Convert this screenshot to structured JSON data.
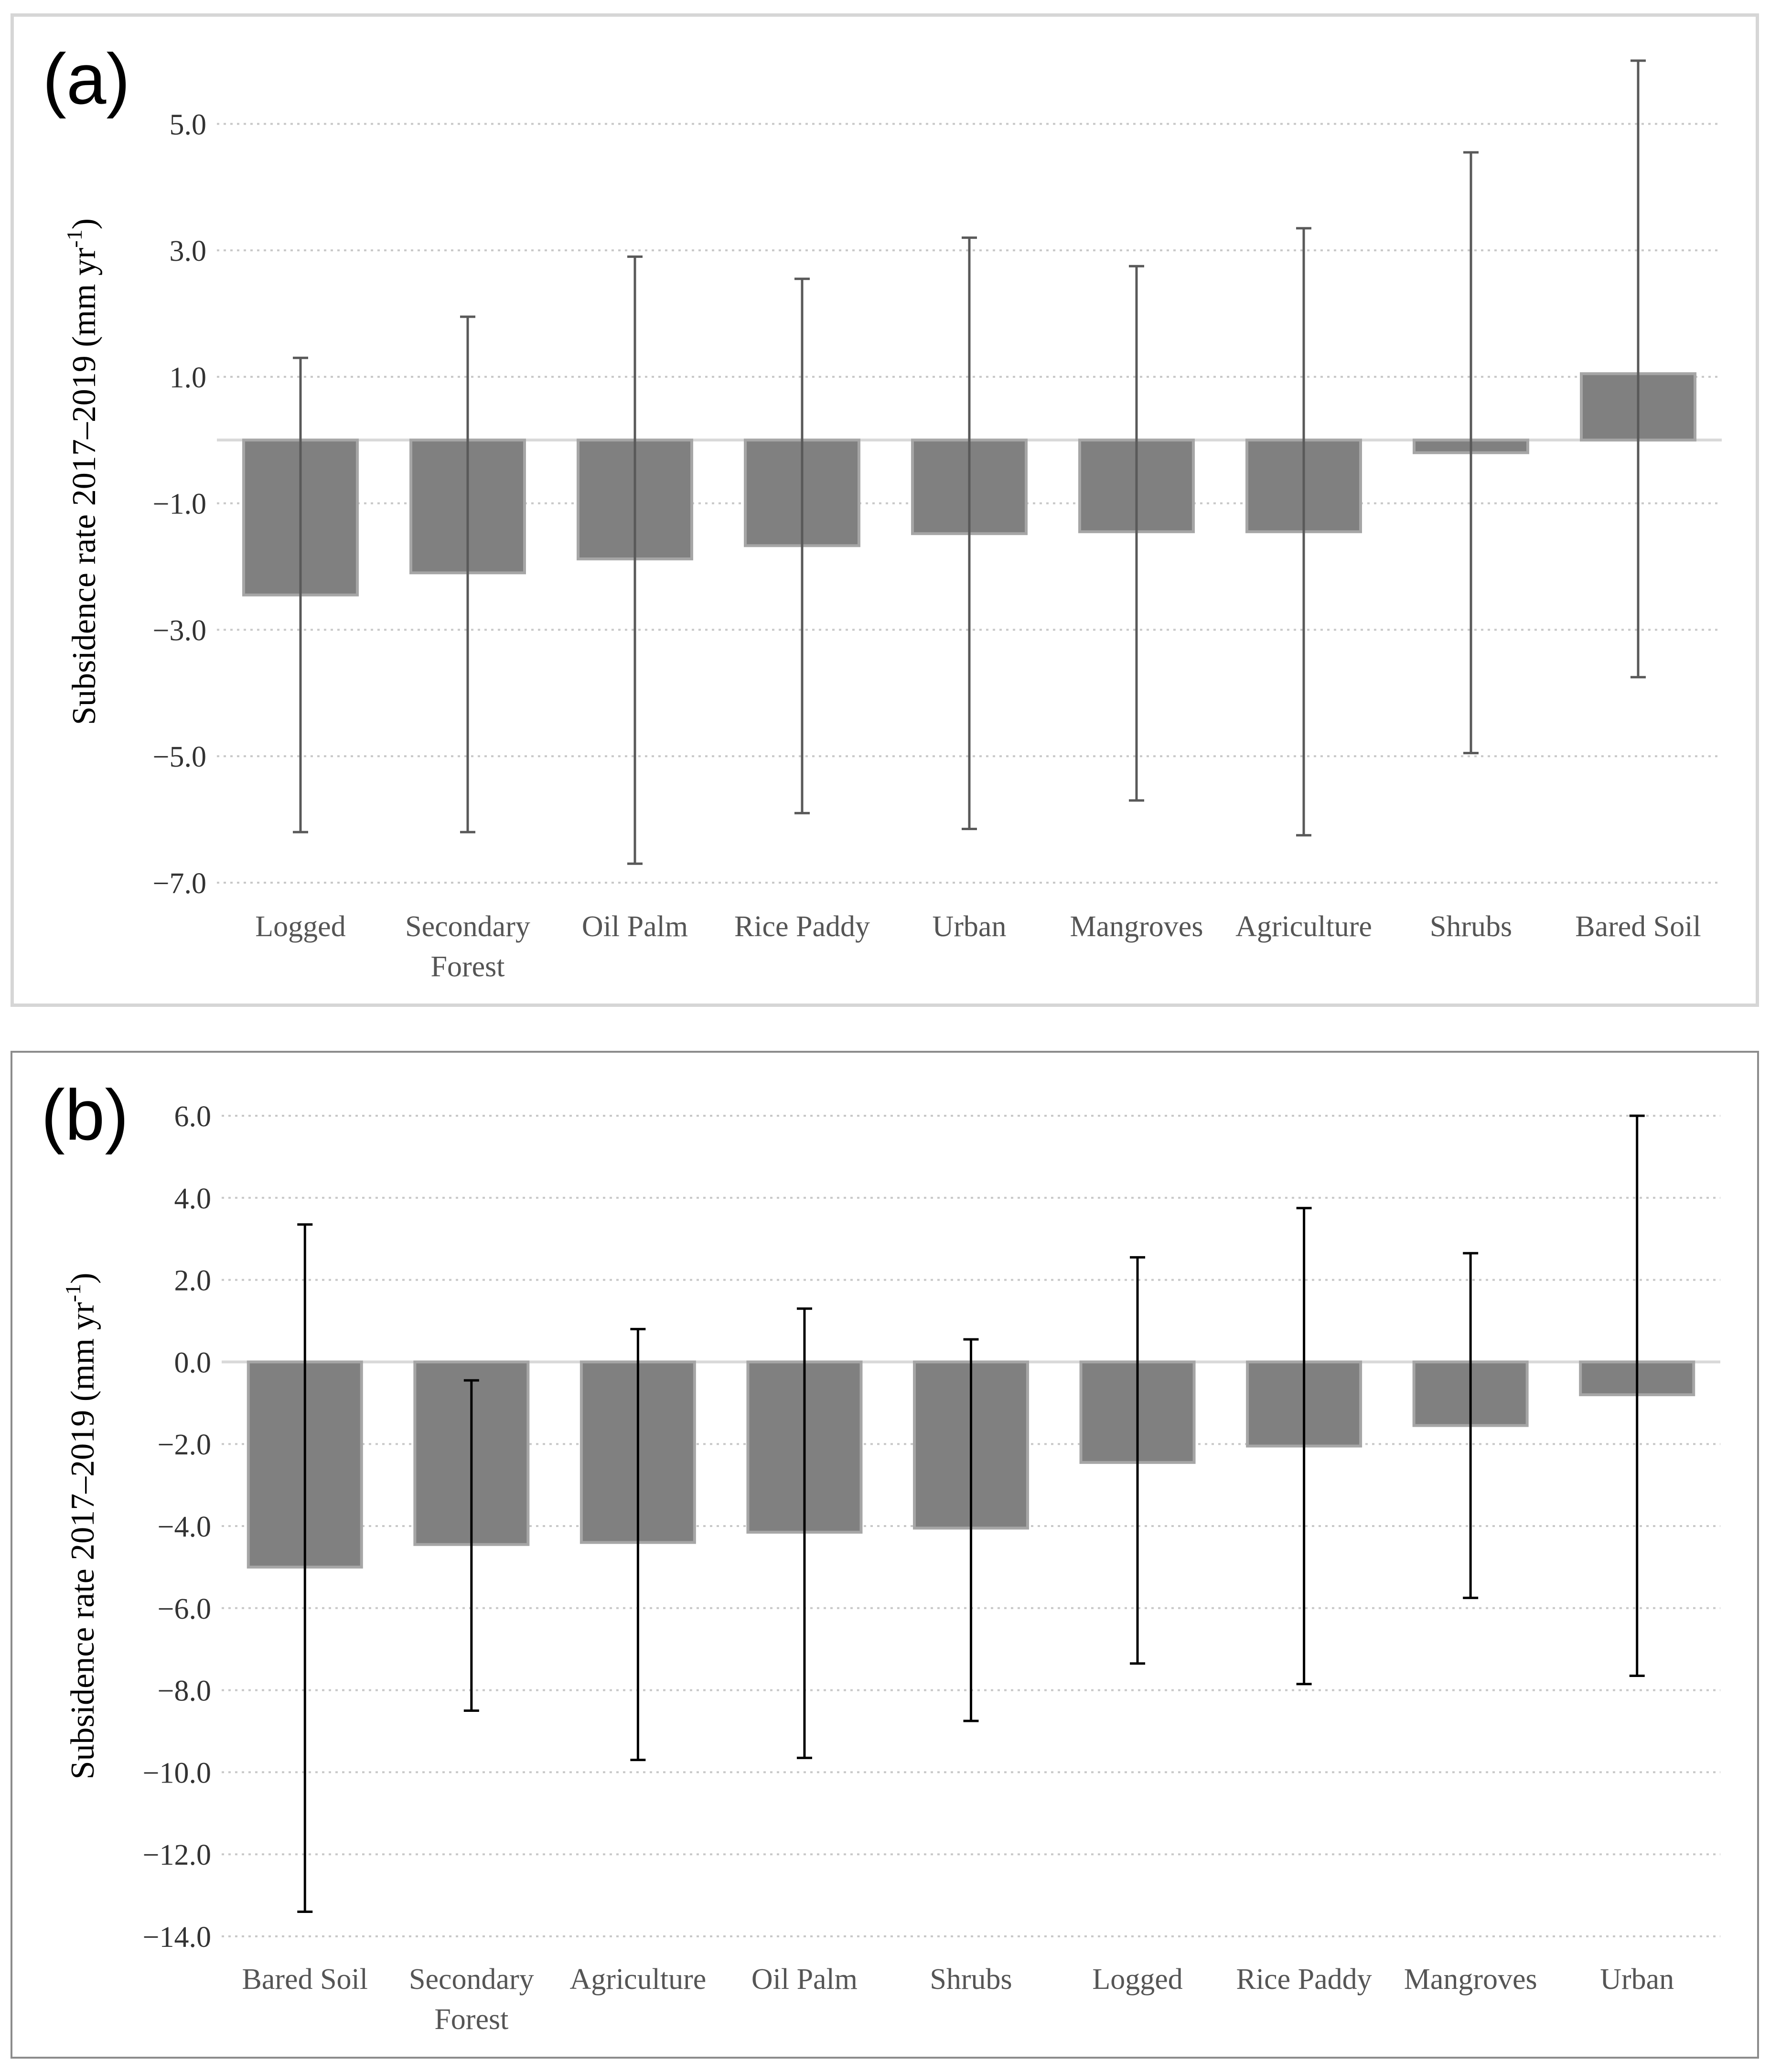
{
  "chart_data": [
    {
      "type": "bar",
      "panel_label": "(a)",
      "ylabel": "Subsidence rate 2017–2019 (mm yr",
      "ylabel_sup": "-1",
      "ylabel_close": ")",
      "ylim": [
        -7.0,
        6.0
      ],
      "yticks": [
        5.0,
        3.0,
        1.0,
        -1.0,
        -3.0,
        -5.0,
        -7.0
      ],
      "ytick_labels": [
        "5.0",
        "3.0",
        "1.0",
        "−1.0",
        "−3.0",
        "−5.0",
        "−7.0"
      ],
      "grid": true,
      "categories": [
        [
          "Logged"
        ],
        [
          "Secondary",
          "Forest"
        ],
        [
          "Oil Palm"
        ],
        [
          "Rice Paddy"
        ],
        [
          "Urban"
        ],
        [
          "Mangroves"
        ],
        [
          "Agriculture"
        ],
        [
          "Shrubs"
        ],
        [
          "Bared Soil"
        ]
      ],
      "values": [
        -2.45,
        -2.1,
        -1.88,
        -1.67,
        -1.48,
        -1.45,
        -1.45,
        -0.2,
        1.05
      ],
      "error_upper": [
        1.3,
        1.95,
        2.9,
        2.55,
        3.2,
        2.75,
        3.35,
        4.55,
        6.0
      ],
      "error_lower": [
        -6.2,
        -6.2,
        -6.7,
        -5.9,
        -6.15,
        -5.7,
        -6.25,
        -4.95,
        -3.75
      ],
      "bar_color": "#808080",
      "bar_edge": "#a6a6a6",
      "error_color": "#595959"
    },
    {
      "type": "bar",
      "panel_label": "(b)",
      "ylabel": "Subsidence rate 2017–2019 (mm yr",
      "ylabel_sup": "-1",
      "ylabel_close": ")",
      "ylim": [
        -14.0,
        6.0
      ],
      "yticks": [
        6.0,
        4.0,
        2.0,
        0.0,
        -2.0,
        -4.0,
        -6.0,
        -8.0,
        -10.0,
        -12.0,
        -14.0
      ],
      "ytick_labels": [
        "6.0",
        "4.0",
        "2.0",
        "0.0",
        "−2.0",
        "−4.0",
        "−6.0",
        "−8.0",
        "−10.0",
        "−12.0",
        "−14.0"
      ],
      "grid": true,
      "categories": [
        [
          "Bared Soil"
        ],
        [
          "Secondary",
          "Forest"
        ],
        [
          "Agriculture"
        ],
        [
          "Oil Palm"
        ],
        [
          "Shrubs"
        ],
        [
          "Logged"
        ],
        [
          "Rice Paddy"
        ],
        [
          "Mangroves"
        ],
        [
          "Urban"
        ]
      ],
      "values": [
        -5.0,
        -4.45,
        -4.4,
        -4.15,
        -4.05,
        -2.45,
        -2.05,
        -1.55,
        -0.8
      ],
      "error_upper": [
        3.35,
        -0.45,
        0.8,
        1.3,
        0.55,
        2.55,
        3.75,
        2.65,
        6.0
      ],
      "error_lower": [
        -13.4,
        -8.5,
        -9.7,
        -9.65,
        -8.75,
        -7.35,
        -7.85,
        -5.75,
        -7.65
      ],
      "bar_color": "#808080",
      "bar_edge": "#a6a6a6",
      "error_color": "#000000"
    }
  ]
}
